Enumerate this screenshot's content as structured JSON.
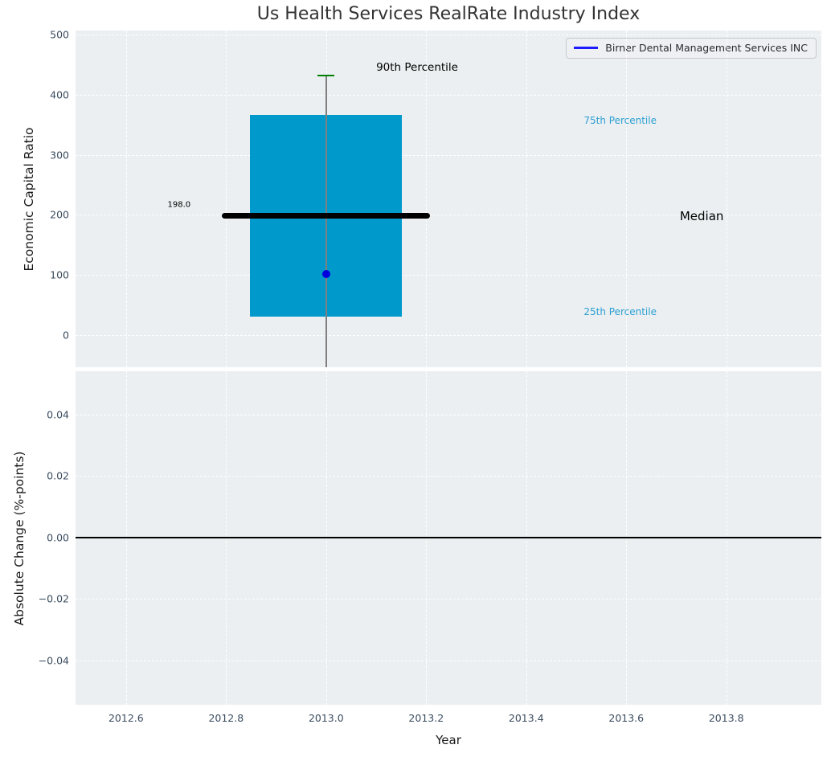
{
  "chart_data": {
    "type": "boxplot",
    "title": "Us Health Services RealRate Industry Index",
    "xlabel": "Year",
    "xlim": [
      2012.499,
      2013.99
    ],
    "xticks": [
      {
        "v": 2012.6,
        "label": "2012.6"
      },
      {
        "v": 2012.8,
        "label": "2012.8"
      },
      {
        "v": 2013.0,
        "label": "2013.0"
      },
      {
        "v": 2013.2,
        "label": "2013.2"
      },
      {
        "v": 2013.4,
        "label": "2013.4"
      },
      {
        "v": 2013.6,
        "label": "2013.6"
      },
      {
        "v": 2013.8,
        "label": "2013.8"
      }
    ],
    "grid": true,
    "legend": {
      "label": "Birner Dental Management Services INC",
      "line_color": "#1c1cff",
      "location": "upper right"
    },
    "subplots": [
      {
        "name": "economic-capital-ratio",
        "ylabel": "Economic Capital Ratio",
        "ylim": [
          -54,
          507
        ],
        "yticks": [
          {
            "v": 0,
            "label": "0"
          },
          {
            "v": 100,
            "label": "100"
          },
          {
            "v": 200,
            "label": "200"
          },
          {
            "v": 300,
            "label": "300"
          },
          {
            "v": 400,
            "label": "400"
          },
          {
            "v": 500,
            "label": "500"
          }
        ],
        "box": {
          "x": 2013.0,
          "p25": 30,
          "median": 198,
          "p75": 366,
          "p90": 432,
          "company_value": 101,
          "whisker_low_clipped": true,
          "box_halfwidth": 0.152,
          "median_halfwidth": 0.208,
          "cap_halfwidth": 0.017,
          "box_color": "#0099cc",
          "whisker_color": "#7f7f7f",
          "cap_color": "#008000",
          "median_color": "#000000",
          "dot_color": "#0000dd"
        },
        "annotations": [
          {
            "id": "p90-label",
            "text": "90th Percentile",
            "x": 2013.1,
            "y": 445,
            "color": "#000000",
            "size": 13.5
          },
          {
            "id": "p75-label",
            "text": "75th Percentile",
            "x": 2013.515,
            "y": 357,
            "color": "#2b9fd3",
            "size": 12
          },
          {
            "id": "median-label",
            "text": "Median",
            "x": 2013.707,
            "y": 198,
            "color": "#000000",
            "size": 15
          },
          {
            "id": "p25-label",
            "text": "25th Percentile",
            "x": 2013.515,
            "y": 39,
            "color": "#2b9fd3",
            "size": 12
          },
          {
            "id": "median-value",
            "text": "198.0",
            "x": 2012.683,
            "y": 217,
            "color": "#000000",
            "size": 10
          }
        ]
      },
      {
        "name": "absolute-change",
        "ylabel": "Absolute Change (%-points)",
        "ylim": [
          -0.0544,
          0.0541
        ],
        "yticks": [
          {
            "v": 0.04,
            "label": "0.04"
          },
          {
            "v": 0.02,
            "label": "0.02"
          },
          {
            "v": 0.0,
            "label": "0.00"
          },
          {
            "v": -0.02,
            "label": "−0.02"
          },
          {
            "v": -0.04,
            "label": "−0.04"
          }
        ],
        "zero_line": true,
        "zero_line_color": "#000000"
      }
    ]
  }
}
